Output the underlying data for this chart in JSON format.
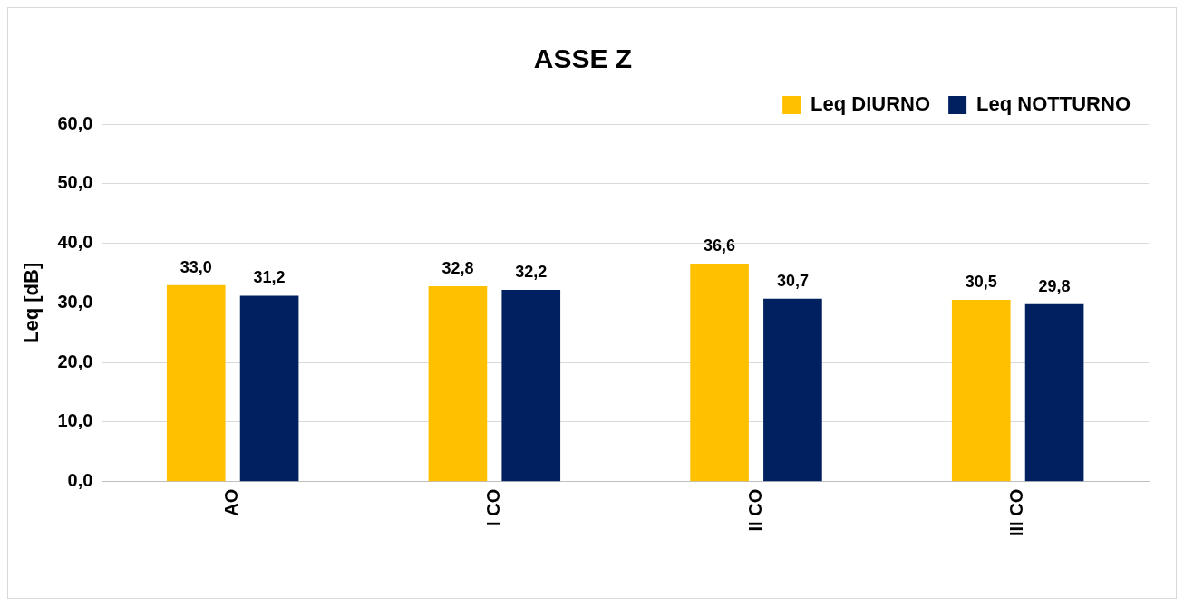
{
  "chart_data": {
    "type": "bar",
    "title": "ASSE Z",
    "ylabel": "Leq [dB]",
    "categories": [
      "AO",
      "I CO",
      "II CO",
      "III CO"
    ],
    "series": [
      {
        "name": "Leq DIURNO",
        "color": "#ffc000",
        "values": [
          33.0,
          32.8,
          36.6,
          30.5
        ],
        "value_labels": [
          "33,0",
          "32,8",
          "36,6",
          "30,5"
        ]
      },
      {
        "name": "Leq NOTTURNO",
        "color": "#002060",
        "values": [
          31.2,
          32.2,
          30.7,
          29.8
        ],
        "value_labels": [
          "31,2",
          "32,2",
          "30,7",
          "29,8"
        ]
      }
    ],
    "ylim": [
      0,
      60
    ],
    "yticks": [
      {
        "value": 0,
        "label": "0,0"
      },
      {
        "value": 10,
        "label": "10,0"
      },
      {
        "value": 20,
        "label": "20,0"
      },
      {
        "value": 30,
        "label": "30,0"
      },
      {
        "value": 40,
        "label": "40,0"
      },
      {
        "value": 50,
        "label": "50,0"
      },
      {
        "value": 60,
        "label": "60,0"
      }
    ],
    "grid": "y",
    "legend": "top right"
  }
}
